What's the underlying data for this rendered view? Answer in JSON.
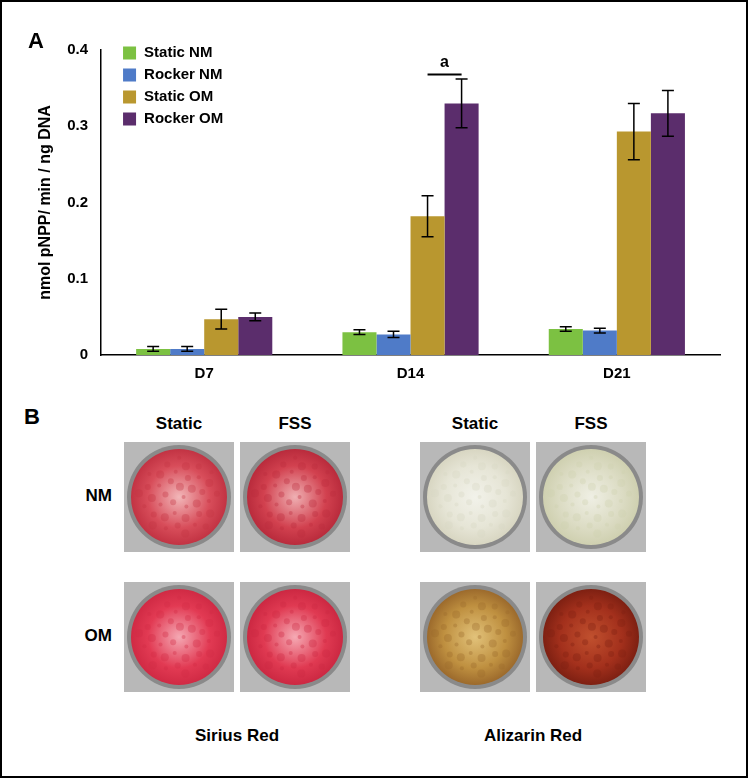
{
  "panel_labels": [
    "A",
    "B"
  ],
  "chart_data": {
    "type": "bar",
    "categories": [
      "D7",
      "D14",
      "D21"
    ],
    "y_label": "nmol pNPP/ min / ng DNA",
    "ylim": [
      0,
      0.4
    ],
    "yticks": [
      0,
      0.1,
      0.2,
      0.3,
      0.4
    ],
    "grid": false,
    "legend": "upper left",
    "series": [
      {
        "name": "Static NM",
        "color": "#7cc142",
        "values": [
          0.008,
          0.03,
          0.034
        ],
        "errors": [
          0.003,
          0.003,
          0.003
        ]
      },
      {
        "name": "Rocker NM",
        "color": "#4f7bc8",
        "values": [
          0.008,
          0.027,
          0.032
        ],
        "errors": [
          0.003,
          0.004,
          0.003
        ]
      },
      {
        "name": "Static OM",
        "color": "#b9972f",
        "values": [
          0.047,
          0.182,
          0.293
        ],
        "errors": [
          0.013,
          0.027,
          0.037
        ]
      },
      {
        "name": "Rocker OM",
        "color": "#5b2d6c",
        "values": [
          0.05,
          0.33,
          0.317
        ],
        "errors": [
          0.005,
          0.032,
          0.03
        ]
      }
    ],
    "annotations": [
      {
        "text": "a",
        "category": "D14",
        "series": [
          "Static OM",
          "Rocker OM"
        ],
        "y": 0.368
      }
    ]
  },
  "image_panel": {
    "rows": [
      "NM",
      "OM"
    ],
    "stains": [
      {
        "name": "Sirius Red",
        "columns": [
          "Static",
          "FSS"
        ]
      },
      {
        "name": "Alizarin Red",
        "columns": [
          "Static",
          "FSS"
        ]
      }
    ]
  }
}
